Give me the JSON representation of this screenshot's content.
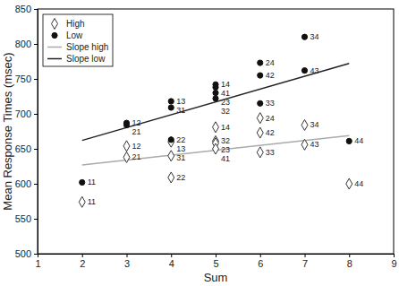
{
  "chart_data": {
    "type": "scatter",
    "x_label": "Sum",
    "y_label": "Mean Response Times (msec)",
    "xlim": [
      1,
      9
    ],
    "ylim": [
      500,
      850
    ],
    "xticks": [
      1,
      2,
      3,
      4,
      5,
      6,
      7,
      8,
      9
    ],
    "yticks": [
      500,
      550,
      600,
      650,
      700,
      750,
      800,
      850
    ],
    "legend": "upper left",
    "series": [
      {
        "name": "High",
        "type": "scatter",
        "marker": "diamond",
        "color": "#333333",
        "x": [
          2,
          3,
          3,
          4,
          4,
          4,
          5,
          5,
          5,
          5,
          6,
          6,
          6,
          7,
          7,
          8
        ],
        "values": [
          574,
          654,
          638,
          660,
          640,
          609,
          681,
          661,
          658,
          650,
          694,
          673,
          645,
          684,
          656,
          600
        ],
        "labels": [
          "11",
          "12",
          "21",
          "13",
          "31",
          "22",
          "14",
          "32",
          "23",
          "41",
          "24",
          "42",
          "33",
          "34",
          "43",
          "44"
        ]
      },
      {
        "name": "Low",
        "type": "scatter",
        "marker": "circle",
        "color": "#111111",
        "x": [
          2,
          3,
          3,
          4,
          4,
          4,
          5,
          5,
          5,
          5,
          6,
          6,
          6,
          7,
          7,
          8
        ],
        "values": [
          602,
          687,
          684,
          718,
          709,
          663,
          742,
          738,
          730,
          722,
          773,
          755,
          715,
          810,
          762,
          661
        ],
        "labels": [
          "11",
          "12",
          "21",
          "13",
          "31",
          "22",
          "14",
          "41",
          "23",
          "32",
          "24",
          "42",
          "33",
          "34",
          "43",
          "44"
        ]
      },
      {
        "name": "Slope high",
        "type": "line",
        "line_style": "solid",
        "color": "#aaaaaa",
        "x": [
          2,
          8
        ],
        "values": [
          627,
          669
        ]
      },
      {
        "name": "Slope low",
        "type": "line",
        "line_style": "solid",
        "color": "#222222",
        "x": [
          2,
          8
        ],
        "values": [
          662,
          772
        ]
      }
    ]
  }
}
